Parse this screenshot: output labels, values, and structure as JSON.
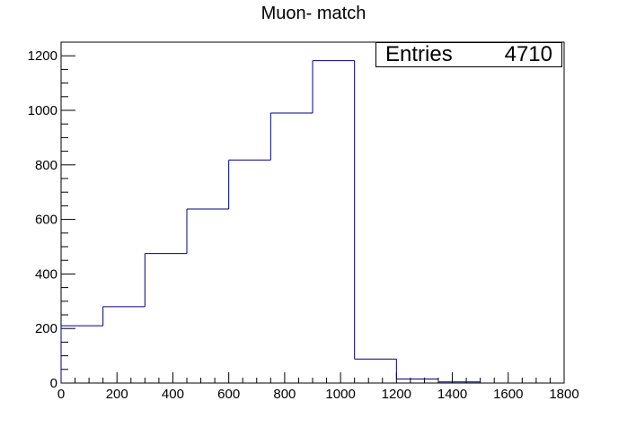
{
  "chart_data": {
    "type": "bar",
    "title": "Muon- match",
    "stats": {
      "label": "Entries",
      "value": "4710"
    },
    "xlim": [
      0,
      1800
    ],
    "ylim": [
      0,
      1250
    ],
    "x_ticks": [
      0,
      200,
      400,
      600,
      800,
      1000,
      1200,
      1400,
      1600,
      1800
    ],
    "y_ticks": [
      0,
      200,
      400,
      600,
      800,
      1000,
      1200
    ],
    "bin_edges": [
      0,
      150,
      300,
      450,
      600,
      750,
      900,
      1050,
      1200,
      1350,
      1500
    ],
    "values": [
      210,
      280,
      475,
      638,
      818,
      990,
      1182,
      88,
      15,
      4
    ],
    "xlabel": "",
    "ylabel": "",
    "grid": false,
    "line_color": "#00007f"
  }
}
